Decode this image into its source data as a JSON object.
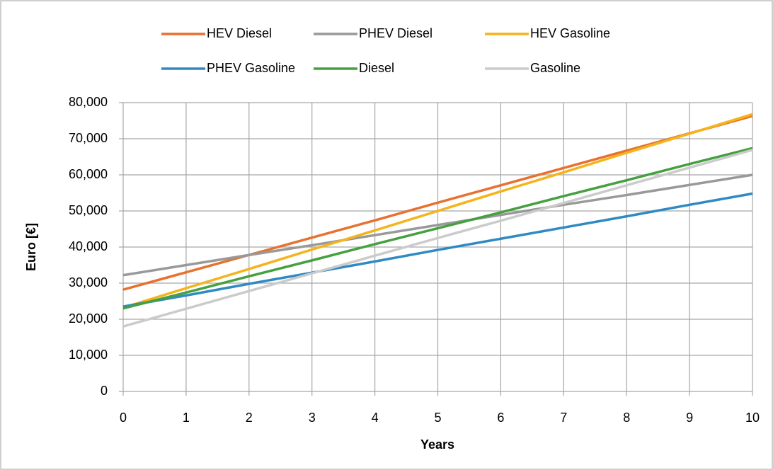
{
  "chart_data": {
    "type": "line",
    "x_label": "Years",
    "y_label": "Euro [€]",
    "x": [
      0,
      1,
      2,
      3,
      4,
      5,
      6,
      7,
      8,
      9,
      10
    ],
    "series": [
      {
        "name": "HEV Diesel",
        "color": "#e8712f",
        "values": [
          28200,
          33000,
          37800,
          42600,
          47400,
          52300,
          57100,
          61900,
          66700,
          71500,
          76300
        ]
      },
      {
        "name": "PHEV Diesel",
        "color": "#999999",
        "values": [
          32200,
          35000,
          37800,
          40500,
          43300,
          46100,
          48900,
          51700,
          54400,
          57200,
          60000
        ]
      },
      {
        "name": "HEV Gasoline",
        "color": "#f5b31c",
        "values": [
          23200,
          28600,
          33900,
          39300,
          44600,
          50000,
          55400,
          60700,
          66100,
          71400,
          76800
        ]
      },
      {
        "name": "PHEV Gasoline",
        "color": "#2f8ac3",
        "values": [
          23500,
          26600,
          29800,
          32900,
          36000,
          39200,
          42300,
          45400,
          48500,
          51700,
          54800
        ]
      },
      {
        "name": "Diesel",
        "color": "#45a040",
        "values": [
          23000,
          27400,
          31900,
          36300,
          40800,
          45200,
          49600,
          54100,
          58500,
          63000,
          67400
        ]
      },
      {
        "name": "Gasoline",
        "color": "#cbcbcb",
        "values": [
          18000,
          22900,
          27800,
          32700,
          37600,
          42500,
          47300,
          52200,
          57100,
          62000,
          66900
        ]
      }
    ],
    "xlim": [
      0,
      10
    ],
    "xticks": [
      0,
      1,
      2,
      3,
      4,
      5,
      6,
      7,
      8,
      9,
      10
    ],
    "ylim": [
      0,
      80000
    ],
    "yticks": [
      0,
      {
        "value": 10000,
        "label": "10,000"
      },
      {
        "value": 20000,
        "label": "20,000"
      },
      {
        "value": 30000,
        "label": "30,000"
      },
      {
        "value": 40000,
        "label": "40,000"
      },
      {
        "value": 50000,
        "label": "50,000"
      },
      {
        "value": 60000,
        "label": "60,000"
      },
      {
        "value": 70000,
        "label": "70,000"
      },
      {
        "value": 80000,
        "label": "80,000"
      }
    ],
    "grid": true,
    "legend": "top"
  }
}
